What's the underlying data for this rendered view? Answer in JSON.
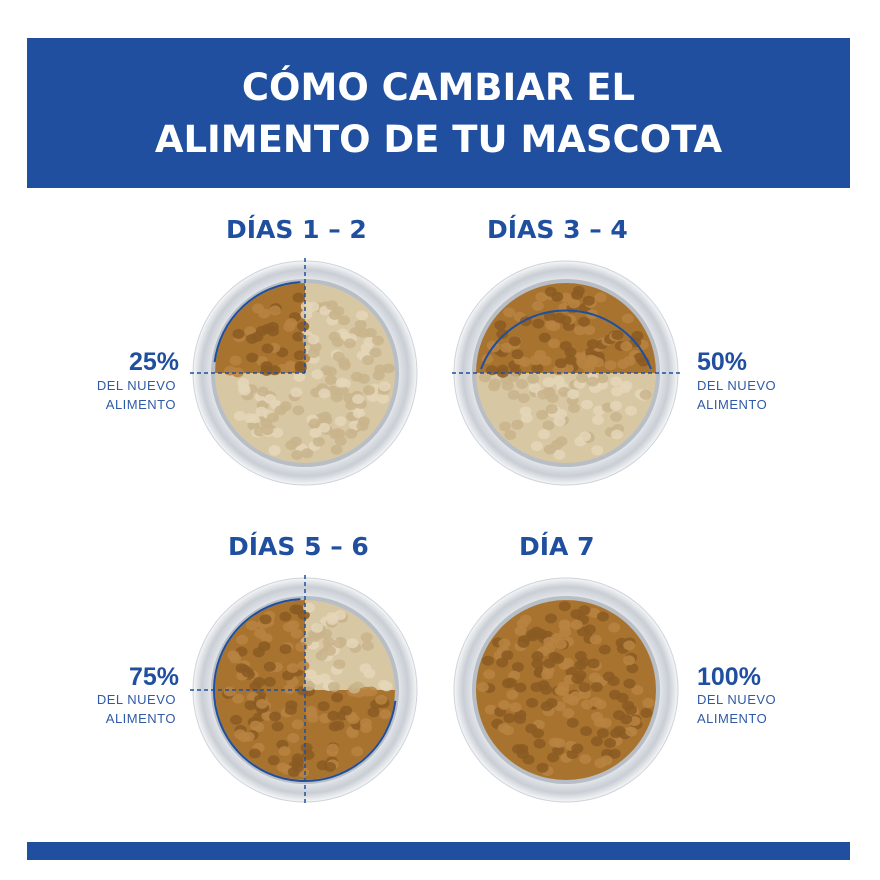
{
  "header": {
    "line1": "CÓMO CAMBIAR EL",
    "line2": "ALIMENTO DE TU MASCOTA"
  },
  "colors": {
    "brand_blue": "#1f4f9e",
    "old_food": "#d8c7a3",
    "new_food": "#a8732f",
    "bowl_rim": "#d9dde2"
  },
  "steps": [
    {
      "days": "DÍAS 1 – 2",
      "percent": "25%",
      "line1": "DEL NUEVO",
      "line2": "ALIMENTO",
      "new_fraction": 0.25
    },
    {
      "days": "DÍAS 3 – 4",
      "percent": "50%",
      "line1": "DEL NUEVO",
      "line2": "ALIMENTO",
      "new_fraction": 0.5
    },
    {
      "days": "DÍAS 5 – 6",
      "percent": "75%",
      "line1": "DEL NUEVO",
      "line2": "ALIMENTO",
      "new_fraction": 0.75
    },
    {
      "days": "DÍA 7",
      "percent": "100%",
      "line1": "DEL NUEVO",
      "line2": "ALIMENTO",
      "new_fraction": 1.0
    }
  ]
}
